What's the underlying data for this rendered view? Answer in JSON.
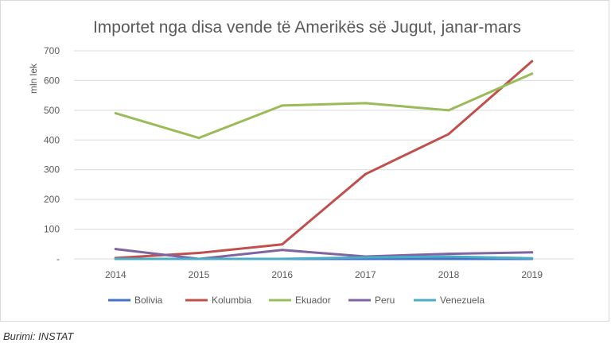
{
  "chart_data": {
    "type": "line",
    "title": "Importet nga disa vende të Amerikës së Jugut, janar-mars",
    "xlabel": "",
    "ylabel": "mln lek",
    "x": [
      "2014",
      "2015",
      "2016",
      "2017",
      "2018",
      "2019"
    ],
    "ylim": [
      0,
      700
    ],
    "yticks": [
      0,
      100,
      200,
      300,
      400,
      500,
      600,
      700
    ],
    "ytick_labels": [
      "-",
      "100",
      "200",
      "300",
      "400",
      "500",
      "600",
      "700"
    ],
    "grid": "horizontal",
    "legend_position": "bottom",
    "series": [
      {
        "name": "Bolivia",
        "color": "#4472c4",
        "values": [
          0,
          0,
          0,
          0,
          0,
          0
        ]
      },
      {
        "name": "Kolumbia",
        "color": "#c0504d",
        "values": [
          3,
          20,
          49,
          285,
          420,
          665
        ]
      },
      {
        "name": "Ekuador",
        "color": "#9bbb59",
        "values": [
          490,
          407,
          516,
          524,
          500,
          623
        ]
      },
      {
        "name": "Peru",
        "color": "#8064a2",
        "values": [
          33,
          0,
          30,
          8,
          17,
          22
        ]
      },
      {
        "name": "Venezuela",
        "color": "#4bacc6",
        "values": [
          0,
          0,
          0,
          5,
          8,
          2
        ]
      }
    ]
  },
  "source_text": "Burimi: INSTAT"
}
